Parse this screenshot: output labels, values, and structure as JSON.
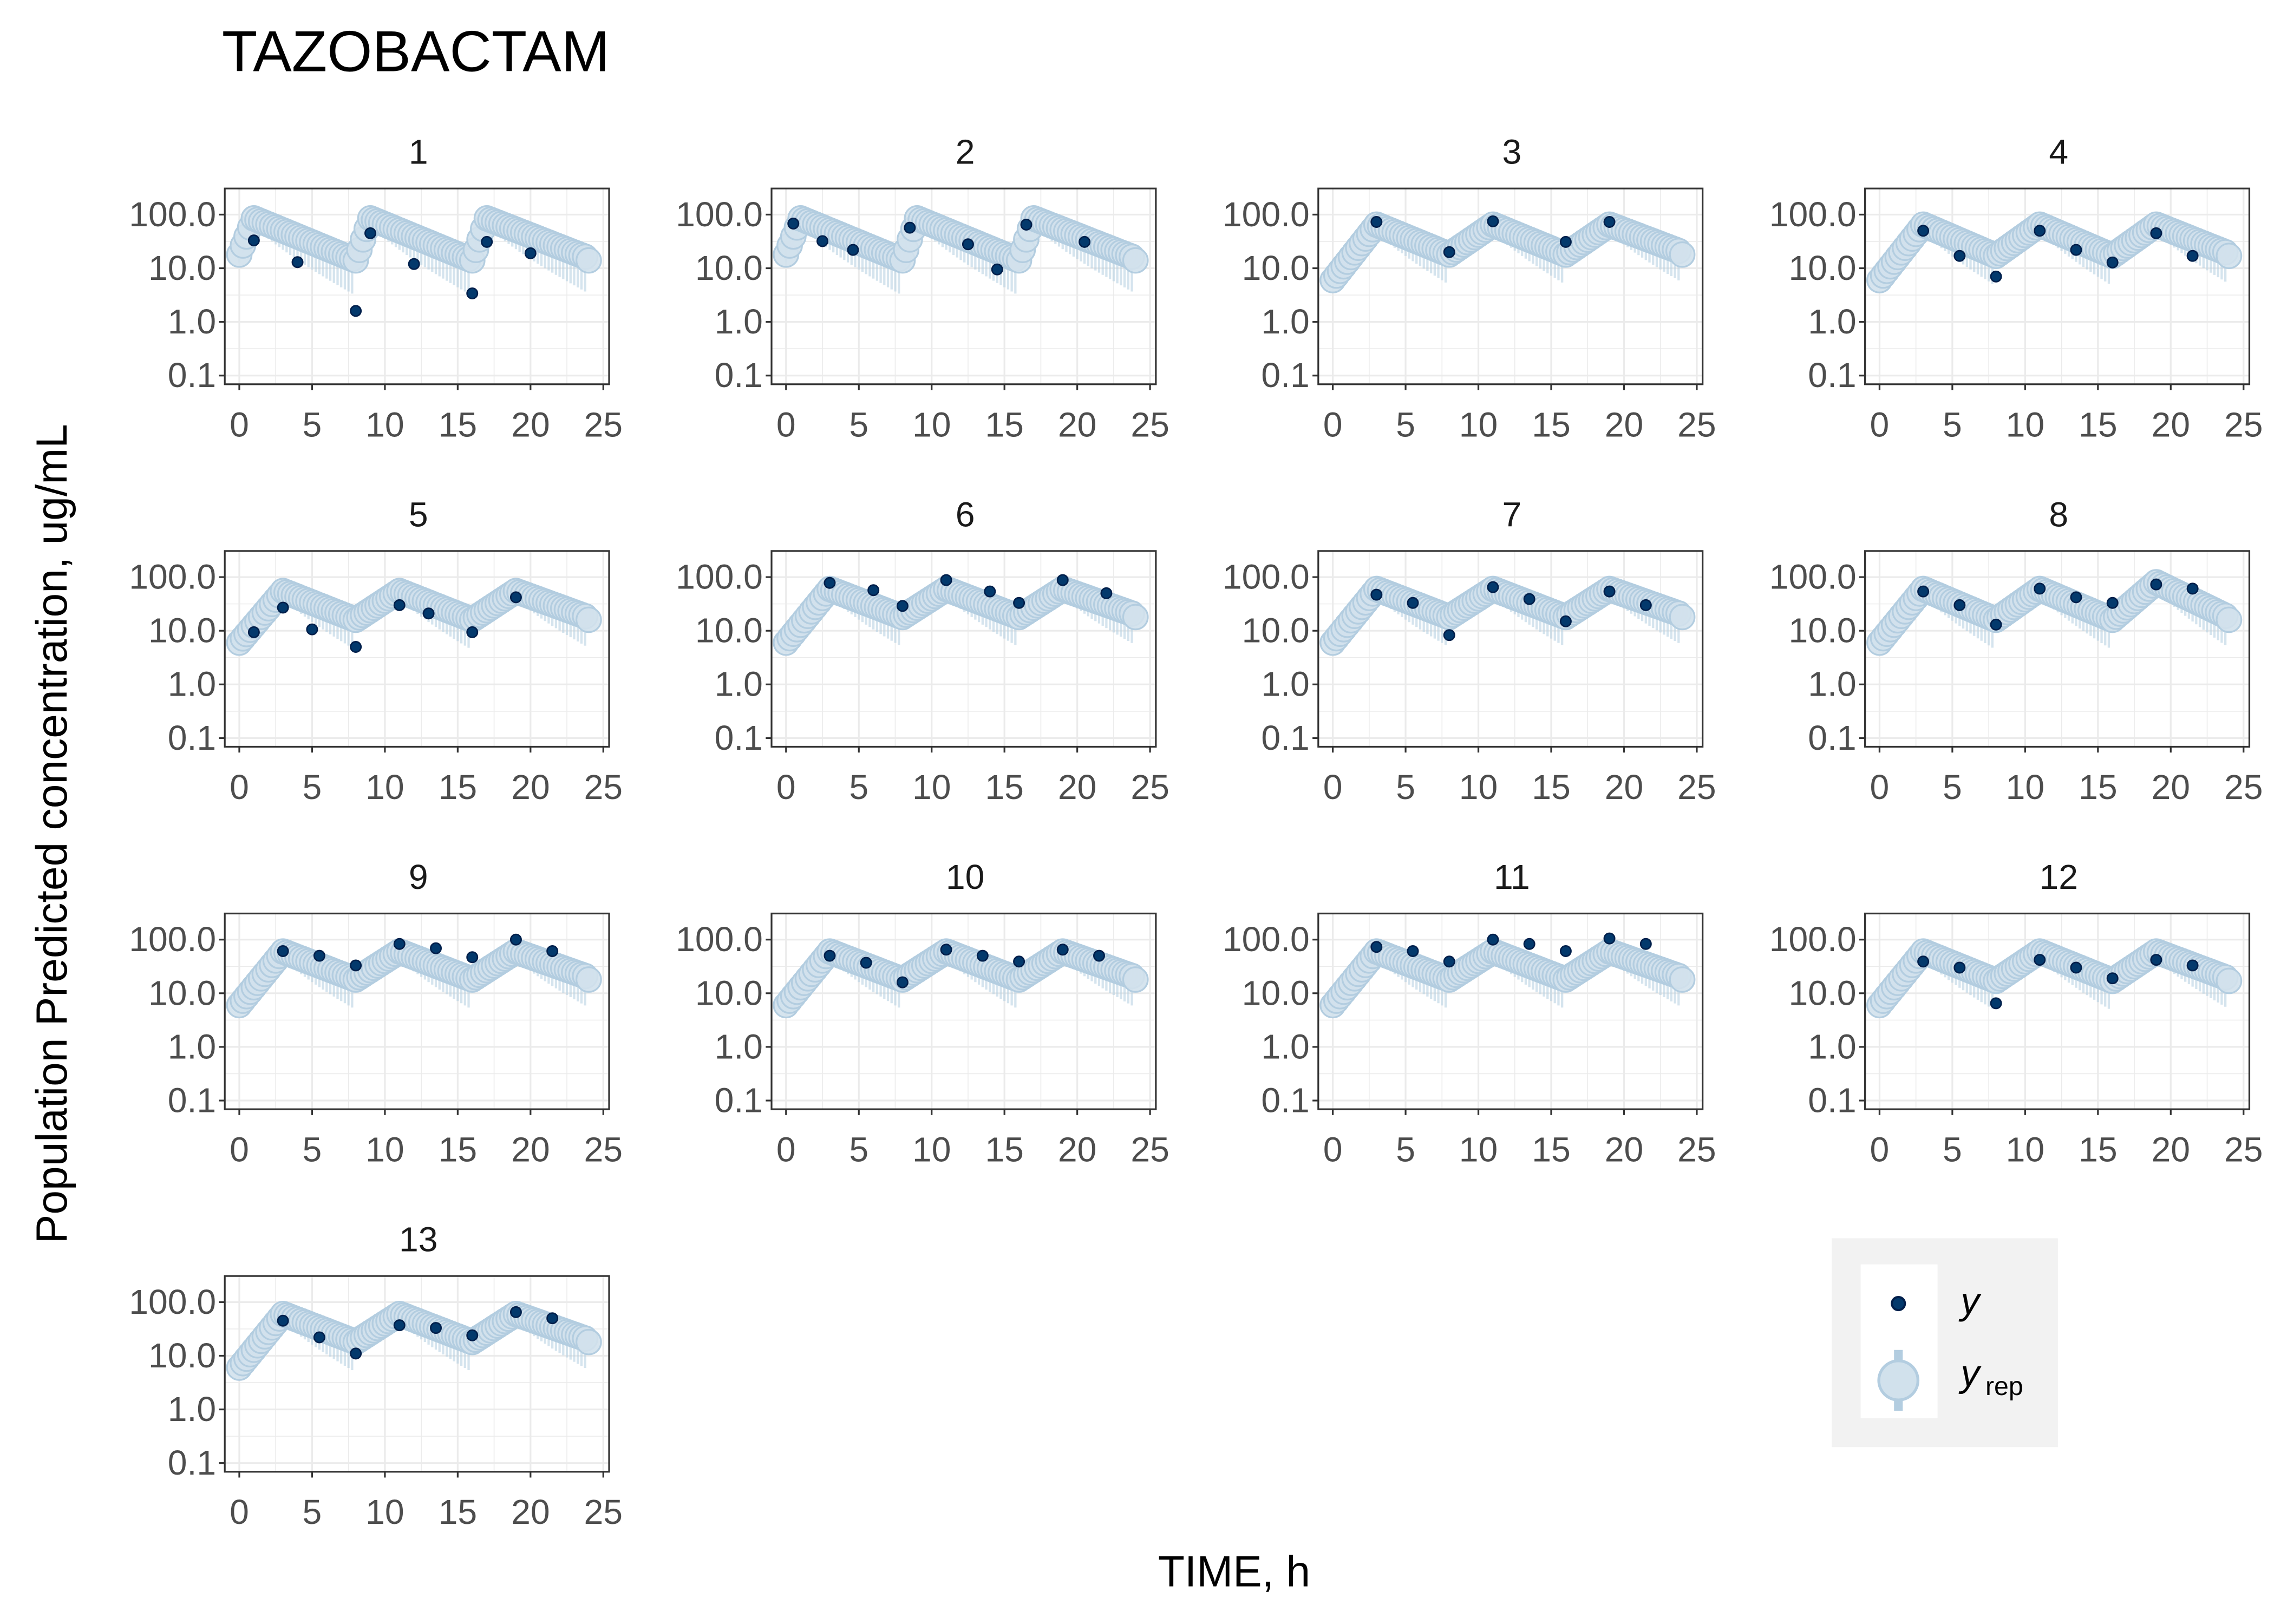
{
  "chart_data": {
    "type": "scatter",
    "title": "TAZOBACTAM",
    "xlabel": "TIME, h",
    "ylabel": "Population Predicted concentration, ug/mL",
    "x_ticks": [
      "0",
      "5",
      "10",
      "15",
      "20",
      "25"
    ],
    "x_tick_values": [
      0,
      5,
      10,
      15,
      20,
      25
    ],
    "y_ticks": [
      "0.1",
      "1.0",
      "10.0",
      "100.0"
    ],
    "y_tick_values": [
      0.1,
      1,
      10,
      100
    ],
    "y_scale": "log10",
    "xlim": [
      0,
      25
    ],
    "grid": true,
    "legend": {
      "position": "bottom-right",
      "entries": [
        {
          "label": "y",
          "kind": "observed"
        },
        {
          "label": "y",
          "sub": "rep",
          "kind": "replicated"
        }
      ]
    },
    "colors": {
      "y": "#03396c",
      "y_stroke": "#011f4b",
      "yrep_fill": "#d1e1ec",
      "yrep_line": "#b3cde0",
      "legend_bg": "#f2f2f2"
    },
    "panels": [
      {
        "id": "1",
        "yrep_model": {
          "c0": 18,
          "peak": 85,
          "trough": 14,
          "infusion_h": 1
        },
        "y": [
          [
            1,
            33
          ],
          [
            4,
            13
          ],
          [
            8,
            1.6
          ],
          [
            9,
            45
          ],
          [
            12,
            12
          ],
          [
            16,
            3.4
          ],
          [
            17,
            31
          ],
          [
            20,
            19
          ]
        ]
      },
      {
        "id": "2",
        "yrep_model": {
          "c0": 18,
          "peak": 85,
          "trough": 14,
          "infusion_h": 1
        },
        "y": [
          [
            0.5,
            68
          ],
          [
            2.5,
            32
          ],
          [
            4.6,
            22
          ],
          [
            8.5,
            57
          ],
          [
            12.5,
            28
          ],
          [
            14.5,
            9.5
          ],
          [
            16.5,
            65
          ],
          [
            20.5,
            31
          ]
        ]
      },
      {
        "id": "3",
        "yrep_model": {
          "c0": 6,
          "peak": 65,
          "trough": 18,
          "infusion_h": 3
        },
        "y": [
          [
            3,
            73
          ],
          [
            8,
            20
          ],
          [
            11,
            75
          ],
          [
            16,
            31
          ],
          [
            19,
            73
          ]
        ]
      },
      {
        "id": "4",
        "yrep_model": {
          "c0": 6,
          "peak": 65,
          "trough": 17,
          "infusion_h": 3
        },
        "y": [
          [
            3,
            50
          ],
          [
            5.5,
            17
          ],
          [
            8,
            7
          ],
          [
            11,
            50
          ],
          [
            13.5,
            22
          ],
          [
            16,
            12.8
          ],
          [
            19,
            45
          ],
          [
            21.5,
            17
          ]
        ]
      },
      {
        "id": "5",
        "yrep_model": {
          "c0": 6,
          "peak": 55,
          "trough": 16,
          "infusion_h": 3
        },
        "y": [
          [
            1,
            9.4
          ],
          [
            3,
            27
          ],
          [
            5,
            10.6
          ],
          [
            8,
            5
          ],
          [
            11,
            30
          ],
          [
            13,
            21
          ],
          [
            16,
            9.4
          ],
          [
            19,
            42
          ]
        ]
      },
      {
        "id": "6",
        "yrep_model": {
          "c0": 6,
          "peak": 60,
          "trough": 18,
          "infusion_h": 3
        },
        "y": [
          [
            3,
            78
          ],
          [
            6,
            57
          ],
          [
            8,
            29
          ],
          [
            11,
            88
          ],
          [
            14,
            54
          ],
          [
            16,
            33
          ],
          [
            19,
            88
          ],
          [
            22,
            50
          ]
        ]
      },
      {
        "id": "7",
        "yrep_model": {
          "c0": 6,
          "peak": 60,
          "trough": 18,
          "infusion_h": 3
        },
        "y": [
          [
            3,
            47
          ],
          [
            5.5,
            33
          ],
          [
            8,
            8.3
          ],
          [
            11,
            65
          ],
          [
            13.5,
            39
          ],
          [
            16,
            15
          ],
          [
            19,
            54
          ],
          [
            21.5,
            30
          ]
        ]
      },
      {
        "id": "8",
        "yrep_model": {
          "c0": 6,
          "peak": 60,
          "trough": 16,
          "infusion_h": 3,
          "last_peak": 80
        },
        "y": [
          [
            3,
            54
          ],
          [
            5.5,
            30
          ],
          [
            8,
            13
          ],
          [
            11,
            61
          ],
          [
            13.5,
            42
          ],
          [
            16,
            33
          ],
          [
            19,
            73
          ],
          [
            21.5,
            61
          ]
        ]
      },
      {
        "id": "9",
        "yrep_model": {
          "c0": 6,
          "peak": 60,
          "trough": 18,
          "infusion_h": 3
        },
        "y": [
          [
            3,
            61
          ],
          [
            5.5,
            50
          ],
          [
            8,
            33
          ],
          [
            11,
            83
          ],
          [
            13.5,
            69
          ],
          [
            16,
            47
          ],
          [
            19,
            100
          ],
          [
            21.5,
            61
          ]
        ]
      },
      {
        "id": "10",
        "yrep_model": {
          "c0": 6,
          "peak": 60,
          "trough": 18,
          "infusion_h": 3
        },
        "y": [
          [
            3,
            50
          ],
          [
            5.5,
            37
          ],
          [
            8,
            16
          ],
          [
            11,
            65
          ],
          [
            13.5,
            50
          ],
          [
            16,
            39
          ],
          [
            19,
            65
          ],
          [
            21.5,
            50
          ]
        ]
      },
      {
        "id": "11",
        "yrep_model": {
          "c0": 6,
          "peak": 60,
          "trough": 18,
          "infusion_h": 3
        },
        "y": [
          [
            3,
            73
          ],
          [
            5.5,
            61
          ],
          [
            8,
            39
          ],
          [
            11,
            100
          ],
          [
            13.5,
            83
          ],
          [
            16,
            61
          ],
          [
            19,
            105
          ],
          [
            21.5,
            83
          ]
        ]
      },
      {
        "id": "12",
        "yrep_model": {
          "c0": 6,
          "peak": 60,
          "trough": 17,
          "infusion_h": 3
        },
        "y": [
          [
            3,
            39
          ],
          [
            5.5,
            30
          ],
          [
            8,
            6.5
          ],
          [
            11,
            42
          ],
          [
            13.5,
            30
          ],
          [
            16,
            19
          ],
          [
            19,
            42
          ],
          [
            21.5,
            33
          ]
        ]
      },
      {
        "id": "13",
        "yrep_model": {
          "c0": 6,
          "peak": 60,
          "trough": 18,
          "infusion_h": 3
        },
        "y": [
          [
            3,
            45
          ],
          [
            5.5,
            22
          ],
          [
            8,
            11
          ],
          [
            11,
            37
          ],
          [
            13.5,
            33
          ],
          [
            16,
            24
          ],
          [
            19,
            65
          ],
          [
            21.5,
            50
          ]
        ]
      }
    ]
  }
}
